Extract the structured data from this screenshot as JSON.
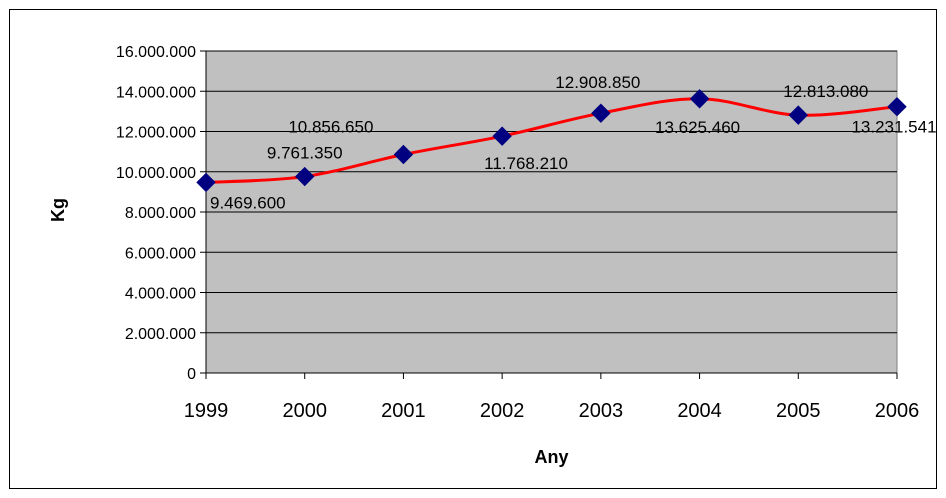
{
  "chart_data": {
    "type": "line",
    "title": "",
    "xlabel": "Any",
    "ylabel": "Kg",
    "categories": [
      "1999",
      "2000",
      "2001",
      "2002",
      "2003",
      "2004",
      "2005",
      "2006"
    ],
    "series": [
      {
        "values": [
          9469600,
          9761350,
          10856650,
          11768210,
          12908850,
          13625460,
          12813080,
          13231541
        ],
        "labels": [
          "9.469.600",
          "9.761.350",
          "10.856.650",
          "11.768.210",
          "12.908.850",
          "13.625.460",
          "12.813.080",
          "13.231.541"
        ]
      }
    ],
    "ylim": [
      0,
      16000000
    ],
    "y_ticks": [
      0,
      2000000,
      4000000,
      6000000,
      8000000,
      10000000,
      12000000,
      14000000,
      16000000
    ],
    "y_tick_labels": [
      "0",
      "2.000.000",
      "4.000.000",
      "6.000.000",
      "8.000.000",
      "10.000.000",
      "12.000.000",
      "14.000.000",
      "16.000.000"
    ],
    "grid": true,
    "legend": "none",
    "colors": {
      "plot_background": "#c0c0c0",
      "line": "#ff0000",
      "marker": "#000080",
      "gridline": "#000000"
    },
    "marker_shape": "diamond",
    "smoothed": true
  }
}
